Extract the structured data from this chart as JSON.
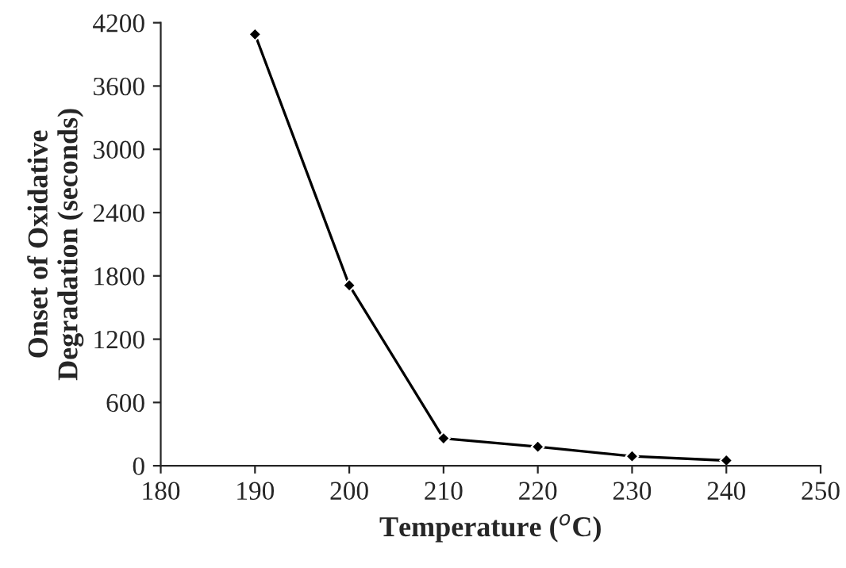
{
  "chart_data": {
    "type": "line",
    "xlabel": "Temperature ($^{o}$C)",
    "ylabel": "Onset of Oxidative\nDegradation (seconds)",
    "x": [
      190,
      200,
      210,
      220,
      230,
      240
    ],
    "series": [
      {
        "color": "#000000",
        "values": [
          4090,
          1710,
          260,
          180,
          90,
          50
        ]
      }
    ],
    "xlim": [
      180,
      250
    ],
    "xticks": [
      180,
      190,
      200,
      210,
      220,
      230,
      240,
      250
    ],
    "ylim": [
      0,
      4200
    ],
    "yticks": [
      0,
      600,
      1200,
      1800,
      2400,
      3000,
      3600,
      4200
    ],
    "marker": "diamond",
    "line_style": "solid",
    "grid": false,
    "legend": false
  }
}
